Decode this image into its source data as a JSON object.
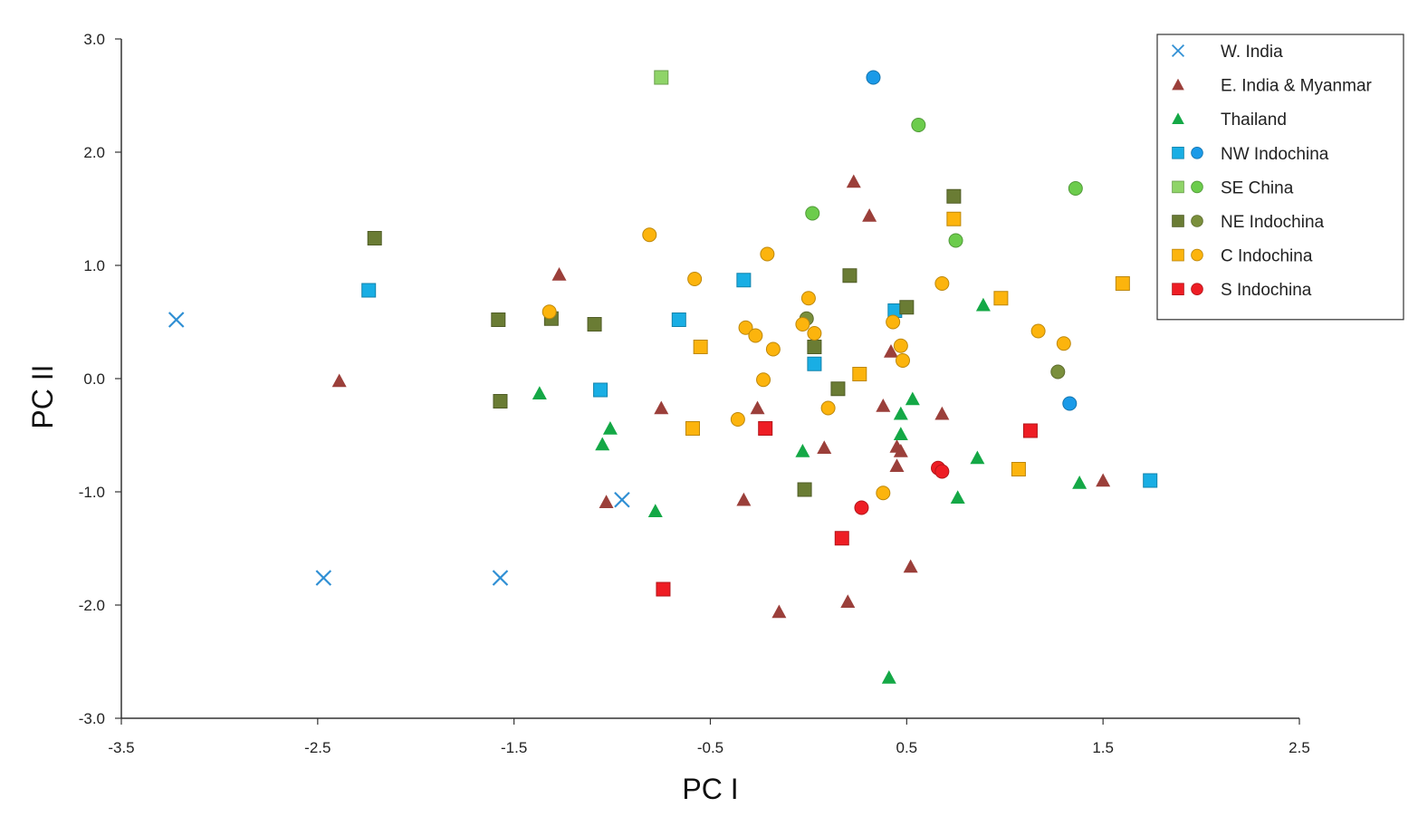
{
  "chart_data": {
    "type": "scatter",
    "title": "",
    "xlabel": "PC I",
    "ylabel": "PC II",
    "xlim": [
      -3.5,
      2.5
    ],
    "ylim": [
      -3.0,
      3.0
    ],
    "x_ticks": [
      "-3.5",
      "-2.5",
      "-1.5",
      "-0.5",
      "0.5",
      "1.5",
      "2.5"
    ],
    "y_ticks": [
      "3.0",
      "2.0",
      "1.0",
      "0.0",
      "-1.0",
      "-2.0",
      "-3.0"
    ],
    "grid": false,
    "legend_position": "top-right",
    "series": [
      {
        "name": "W. India",
        "color": "#2f8fd4",
        "entries": [
          {
            "marker": "x",
            "points": [
              [
                -3.22,
                0.52
              ],
              [
                -2.47,
                -1.76
              ],
              [
                -1.57,
                -1.76
              ],
              [
                -0.95,
                -1.07
              ]
            ]
          }
        ]
      },
      {
        "name": "E. India & Myanmar",
        "color": "#9b3f3a",
        "entries": [
          {
            "marker": "triangle",
            "points": [
              [
                -2.39,
                -0.02
              ],
              [
                -1.27,
                0.92
              ],
              [
                -1.03,
                -1.09
              ],
              [
                -0.75,
                -0.26
              ],
              [
                -0.33,
                -1.07
              ],
              [
                -0.26,
                -0.26
              ],
              [
                -0.15,
                -2.06
              ],
              [
                0.08,
                -0.61
              ],
              [
                0.2,
                -1.97
              ],
              [
                0.23,
                1.74
              ],
              [
                0.31,
                1.44
              ],
              [
                0.38,
                -0.24
              ],
              [
                0.42,
                0.24
              ],
              [
                0.45,
                -0.6
              ],
              [
                0.45,
                -0.77
              ],
              [
                0.47,
                -0.64
              ],
              [
                0.52,
                -1.66
              ],
              [
                0.68,
                -0.31
              ],
              [
                1.5,
                -0.9
              ]
            ]
          }
        ]
      },
      {
        "name": "Thailand",
        "color": "#14a846",
        "entries": [
          {
            "marker": "triangle",
            "points": [
              [
                -1.37,
                -0.13
              ],
              [
                -1.05,
                -0.58
              ],
              [
                -1.01,
                -0.44
              ],
              [
                -0.78,
                -1.17
              ],
              [
                -0.03,
                -0.64
              ],
              [
                0.41,
                -2.64
              ],
              [
                0.47,
                -0.31
              ],
              [
                0.47,
                -0.49
              ],
              [
                0.53,
                -0.18
              ],
              [
                0.76,
                -1.05
              ],
              [
                0.86,
                -0.7
              ],
              [
                0.89,
                0.65
              ],
              [
                1.38,
                -0.92
              ]
            ]
          }
        ]
      },
      {
        "name": "NW Indochina",
        "color": "#19aee4",
        "entries": [
          {
            "marker": "square",
            "points": [
              [
                -2.24,
                0.78
              ],
              [
                -1.06,
                -0.1
              ],
              [
                -0.66,
                0.52
              ],
              [
                -0.33,
                0.87
              ],
              [
                0.03,
                0.13
              ],
              [
                0.44,
                0.6
              ],
              [
                1.74,
                -0.9
              ]
            ]
          },
          {
            "marker": "circle",
            "color": "#1a9ae8",
            "points": [
              [
                0.33,
                2.66
              ],
              [
                1.33,
                -0.22
              ]
            ]
          }
        ]
      },
      {
        "name": "SE China",
        "color": "#8fd468",
        "entries": [
          {
            "marker": "square",
            "points": [
              [
                -0.75,
                2.66
              ]
            ]
          },
          {
            "marker": "circle",
            "color": "#6ccc4c",
            "points": [
              [
                0.02,
                1.46
              ],
              [
                0.56,
                2.24
              ],
              [
                0.75,
                1.22
              ],
              [
                1.36,
                1.68
              ]
            ]
          }
        ]
      },
      {
        "name": "NE Indochina",
        "color": "#6a7c34",
        "entries": [
          {
            "marker": "square",
            "points": [
              [
                -2.21,
                1.24
              ],
              [
                -1.58,
                0.52
              ],
              [
                -1.57,
                -0.2
              ],
              [
                -1.31,
                0.53
              ],
              [
                -1.09,
                0.48
              ],
              [
                -0.02,
                -0.98
              ],
              [
                0.03,
                0.28
              ],
              [
                0.15,
                -0.09
              ],
              [
                0.21,
                0.91
              ],
              [
                0.5,
                0.63
              ],
              [
                0.74,
                1.61
              ]
            ]
          },
          {
            "marker": "circle",
            "color": "#7a8f3c",
            "points": [
              [
                -0.01,
                0.53
              ],
              [
                1.27,
                0.06
              ]
            ]
          }
        ]
      },
      {
        "name": "C Indochina",
        "color": "#fcb40d",
        "entries": [
          {
            "marker": "square",
            "points": [
              [
                -0.59,
                -0.44
              ],
              [
                -0.55,
                0.28
              ],
              [
                0.26,
                0.04
              ],
              [
                0.74,
                1.41
              ],
              [
                0.98,
                0.71
              ],
              [
                1.07,
                -0.8
              ],
              [
                1.6,
                0.84
              ]
            ]
          },
          {
            "marker": "circle",
            "color": "#fcb40d",
            "points": [
              [
                -1.32,
                0.59
              ],
              [
                -0.81,
                1.27
              ],
              [
                -0.58,
                0.88
              ],
              [
                -0.36,
                -0.36
              ],
              [
                -0.32,
                0.45
              ],
              [
                -0.27,
                0.38
              ],
              [
                -0.23,
                -0.01
              ],
              [
                -0.21,
                1.1
              ],
              [
                -0.18,
                0.26
              ],
              [
                -0.03,
                0.48
              ],
              [
                0.0,
                0.71
              ],
              [
                0.03,
                0.4
              ],
              [
                0.1,
                -0.26
              ],
              [
                0.38,
                -1.01
              ],
              [
                0.43,
                0.5
              ],
              [
                0.47,
                0.29
              ],
              [
                0.48,
                0.16
              ],
              [
                0.68,
                0.84
              ],
              [
                1.17,
                0.42
              ],
              [
                1.3,
                0.31
              ]
            ]
          }
        ]
      },
      {
        "name": "S Indochina",
        "color": "#ee1d24",
        "entries": [
          {
            "marker": "square",
            "points": [
              [
                -0.74,
                -1.86
              ],
              [
                -0.22,
                -0.44
              ],
              [
                0.17,
                -1.41
              ],
              [
                1.13,
                -0.46
              ]
            ]
          },
          {
            "marker": "circle",
            "color": "#ee1d24",
            "points": [
              [
                0.27,
                -1.14
              ],
              [
                0.66,
                -0.79
              ],
              [
                0.68,
                -0.82
              ]
            ]
          }
        ]
      }
    ]
  }
}
